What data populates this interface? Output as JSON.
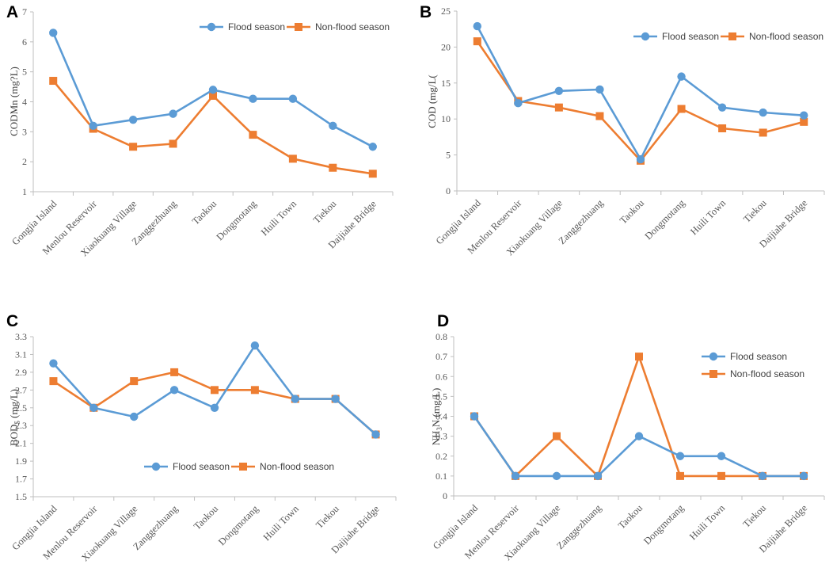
{
  "colors": {
    "flood": "#5b9bd5",
    "nonflood": "#ed7d31",
    "axis": "#bfbfbf",
    "text": "#595959"
  },
  "chart_data": [
    {
      "panel": "A",
      "type": "line",
      "ylabel": "CODMn (mg?L)",
      "ylim": [
        1,
        7
      ],
      "yticks": [
        1,
        2,
        3,
        4,
        5,
        6,
        7
      ],
      "ytick_labels": [
        "1",
        "2",
        "3",
        "4",
        "5",
        "6",
        "7"
      ],
      "categories": [
        "Gongjia Island",
        "Menlou Reservoir",
        "Xiaokuang Village",
        "Zanggezhuang",
        "Taokou",
        "Dongmotang",
        "Huili Town",
        "Tiekou",
        "Daijiahe Bridge"
      ],
      "legend_position": "top-right",
      "series": [
        {
          "name": "Flood season",
          "values": [
            6.3,
            3.2,
            3.4,
            3.6,
            4.4,
            4.1,
            4.1,
            3.2,
            2.5
          ]
        },
        {
          "name": "Non-flood season",
          "values": [
            4.7,
            3.1,
            2.5,
            2.6,
            4.2,
            2.9,
            2.1,
            1.8,
            1.6
          ]
        }
      ]
    },
    {
      "panel": "B",
      "type": "line",
      "ylabel": "COD (mg/L(",
      "ylim": [
        0,
        25
      ],
      "yticks": [
        0,
        5,
        10,
        15,
        20,
        25
      ],
      "ytick_labels": [
        "0",
        "5",
        "10",
        "15",
        "20",
        "25"
      ],
      "categories": [
        "Gongjia Island",
        "Menlou Reservoir",
        "Xiaokuang Village",
        "Zanggezhuang",
        "Taokou",
        "Dongmotang",
        "Huili Town",
        "Tiekou",
        "Daijiahe Bridge"
      ],
      "legend_position": "top-right",
      "series": [
        {
          "name": "Flood season",
          "values": [
            22.9,
            12.2,
            13.9,
            14.1,
            4.4,
            15.9,
            11.6,
            10.9,
            10.5
          ]
        },
        {
          "name": "Non-flood season",
          "values": [
            20.8,
            12.5,
            11.6,
            10.4,
            4.2,
            11.4,
            8.7,
            8.1,
            9.6
          ]
        }
      ]
    },
    {
      "panel": "C",
      "type": "line",
      "ylabel": "BOD",
      "ylabel_sub": "5",
      "ylabel_tail": " (mg/L)",
      "ylim": [
        1.5,
        3.3
      ],
      "yticks": [
        1.5,
        1.7,
        1.9,
        2.1,
        2.3,
        2.5,
        2.7,
        2.9,
        3.1,
        3.3
      ],
      "ytick_labels": [
        "1.5",
        "1.7",
        "1.9",
        "2.1",
        "2.3",
        "2.5",
        "2.7",
        "2.9",
        "3.1",
        "3.3"
      ],
      "categories": [
        "Gongjia Island",
        "Menlou Reservoir",
        "Xiaokuang Village",
        "Zanggezhuang",
        "Taokou",
        "Dongmotang",
        "Huili Town",
        "Tiekou",
        "Daijiahe Bridge"
      ],
      "legend_position": "bottom-center",
      "series": [
        {
          "name": "Flood season",
          "values": [
            3.0,
            2.5,
            2.4,
            2.7,
            2.5,
            3.2,
            2.6,
            2.6,
            2.2
          ]
        },
        {
          "name": "Non-flood season",
          "values": [
            2.8,
            2.5,
            2.8,
            2.9,
            2.7,
            2.7,
            2.6,
            2.6,
            2.2
          ]
        }
      ]
    },
    {
      "panel": "D",
      "type": "line",
      "ylabel": "NH",
      "ylabel_sub": "3",
      "ylabel_tail": "N (mg/L)",
      "ylim": [
        0,
        0.8
      ],
      "yticks": [
        0,
        0.1,
        0.2,
        0.3,
        0.4,
        0.5,
        0.6,
        0.7,
        0.8
      ],
      "ytick_labels": [
        "0",
        "0.1",
        "0.2",
        "0.3",
        "0.4",
        "0.5",
        "0.6",
        "0.7",
        "0.8"
      ],
      "categories": [
        "Gongjia Island",
        "Menlou Reservoir",
        "Xiaokuang Village",
        "Zanggezhuang",
        "Taokou",
        "Dongmotang",
        "Huili Town",
        "Tiekou",
        "Daijiahe Bridge"
      ],
      "legend_position": "top-right-stacked",
      "series": [
        {
          "name": "Flood season",
          "values": [
            0.4,
            0.1,
            0.1,
            0.1,
            0.3,
            0.2,
            0.2,
            0.1,
            0.1
          ]
        },
        {
          "name": "Non-flood season",
          "values": [
            0.4,
            0.1,
            0.3,
            0.1,
            0.7,
            0.1,
            0.1,
            0.1,
            0.1
          ]
        }
      ]
    }
  ]
}
